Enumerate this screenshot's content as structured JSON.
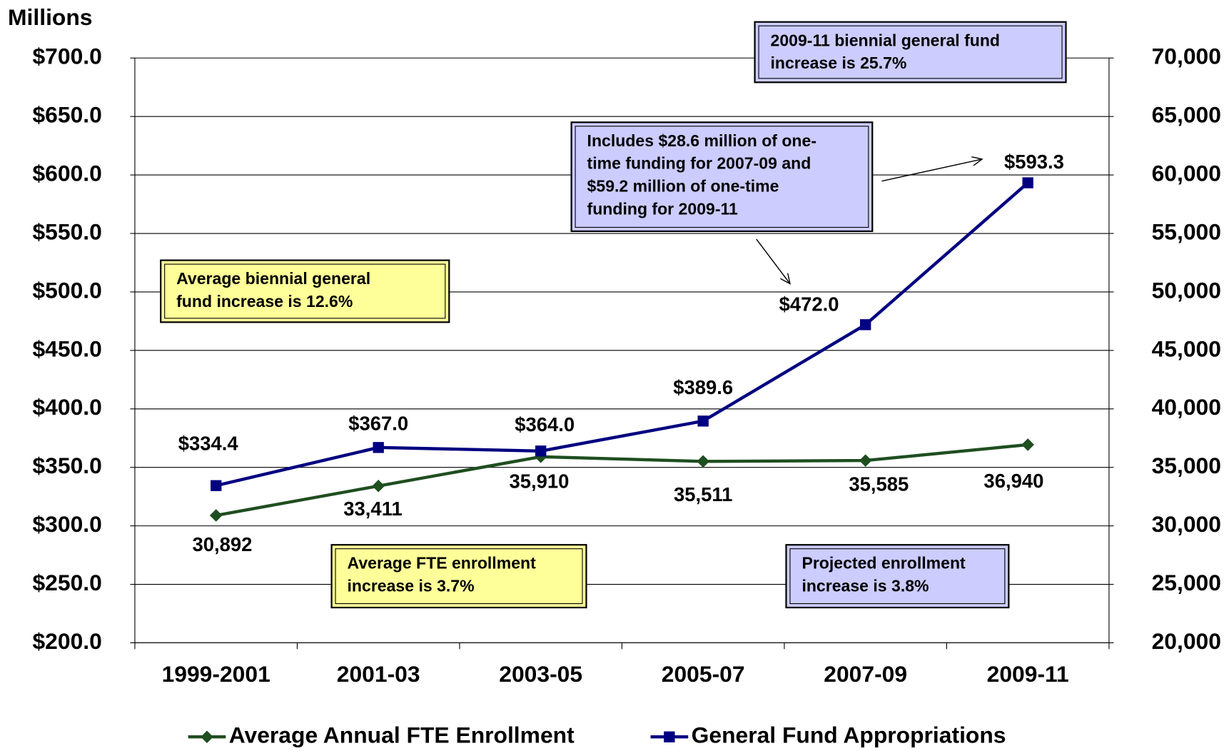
{
  "chart_data": {
    "type": "line",
    "y_axis_label": "Millions",
    "categories": [
      "1999-2001",
      "2001-03",
      "2003-05",
      "2005-07",
      "2007-09",
      "2009-11"
    ],
    "series": [
      {
        "name": "Average Annual FTE Enrollment",
        "color": "#1f4e1f",
        "axis": "y2",
        "marker": "diamond",
        "values": [
          30892,
          33411,
          35910,
          35511,
          35585,
          36940
        ],
        "value_labels": [
          "30,892",
          "33,411",
          "35,910",
          "35,511",
          "35,585",
          "36,940"
        ]
      },
      {
        "name": "General Fund Appropriations",
        "color": "#000080",
        "axis": "y",
        "marker": "square",
        "values": [
          334.4,
          367.0,
          364.0,
          389.6,
          472.0,
          593.3
        ],
        "value_labels": [
          "$334.4",
          "$367.0",
          "$364.0",
          "$389.6",
          "$472.0",
          "$593.3"
        ]
      }
    ],
    "ylim": [
      200,
      700
    ],
    "yticks": [
      {
        "value": 200,
        "label": "$200.0"
      },
      {
        "value": 250,
        "label": "$250.0"
      },
      {
        "value": 300,
        "label": "$300.0"
      },
      {
        "value": 350,
        "label": "$350.0"
      },
      {
        "value": 400,
        "label": "$400.0"
      },
      {
        "value": 450,
        "label": "$450.0"
      },
      {
        "value": 500,
        "label": "$500.0"
      },
      {
        "value": 550,
        "label": "$550.0"
      },
      {
        "value": 600,
        "label": "$600.0"
      },
      {
        "value": 650,
        "label": "$650.0"
      },
      {
        "value": 700,
        "label": "$700.0"
      }
    ],
    "y2lim": [
      20000,
      70000
    ],
    "y2ticks": [
      {
        "value": 20000,
        "label": "20,000"
      },
      {
        "value": 25000,
        "label": "25,000"
      },
      {
        "value": 30000,
        "label": "30,000"
      },
      {
        "value": 35000,
        "label": "35,000"
      },
      {
        "value": 40000,
        "label": "40,000"
      },
      {
        "value": 45000,
        "label": "45,000"
      },
      {
        "value": 50000,
        "label": "50,000"
      },
      {
        "value": 55000,
        "label": "55,000"
      },
      {
        "value": 60000,
        "label": "60,000"
      },
      {
        "value": 65000,
        "label": "65,000"
      },
      {
        "value": 70000,
        "label": "70,000"
      }
    ],
    "grid": true,
    "legend": "bottom",
    "annotations": [
      {
        "lines": [
          "2009-11 biennial general fund",
          "increase is 25.7%"
        ],
        "color": "#ccccff"
      },
      {
        "lines": [
          "Includes $28.6 million of one-",
          "time funding for 2007-09 and",
          "$59.2  million of one-time",
          "funding for 2009-11"
        ],
        "color": "#ccccff"
      },
      {
        "lines": [
          "Average biennial general",
          "fund increase is 12.6%"
        ],
        "color": "#ffff99"
      },
      {
        "lines": [
          "Average FTE enrollment",
          "increase is 3.7%"
        ],
        "color": "#ffff99"
      },
      {
        "lines": [
          "Projected enrollment",
          "increase is 3.8%"
        ],
        "color": "#ccccff"
      }
    ]
  }
}
